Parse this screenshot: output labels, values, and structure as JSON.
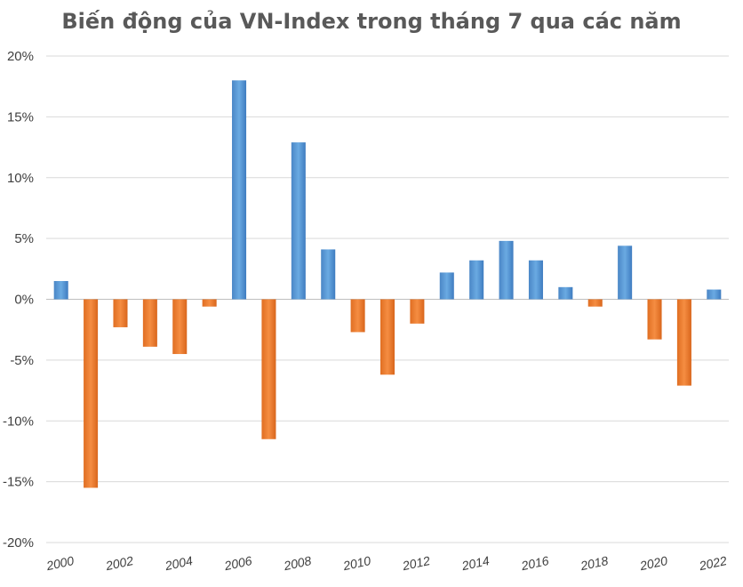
{
  "chart_data": {
    "type": "bar",
    "title": "Biến động của VN-Index trong tháng 7 qua các năm",
    "xlabel": "",
    "ylabel": "",
    "ylim": [
      -20,
      20
    ],
    "yticks": [
      "20%",
      "15%",
      "10%",
      "5%",
      "0%",
      "-5%",
      "-10%",
      "-15%",
      "-20%"
    ],
    "ytick_values": [
      20,
      15,
      10,
      5,
      0,
      -5,
      -10,
      -15,
      -20
    ],
    "xtick_labels": [
      "2000",
      "2002",
      "2004",
      "2006",
      "2008",
      "2010",
      "2012",
      "2014",
      "2016",
      "2018",
      "2020",
      "2022"
    ],
    "categories": [
      "2000",
      "2001",
      "2002",
      "2003",
      "2004",
      "2005",
      "2006",
      "2007",
      "2008",
      "2009",
      "2010",
      "2011",
      "2012",
      "2013",
      "2014",
      "2015",
      "2016",
      "2017",
      "2018",
      "2019",
      "2020",
      "2021",
      "2022"
    ],
    "values": [
      1.5,
      -15.5,
      -2.3,
      -3.9,
      -4.5,
      -0.6,
      18.0,
      -11.5,
      12.9,
      4.1,
      -2.7,
      -6.2,
      -2.0,
      2.2,
      3.2,
      4.8,
      3.2,
      1.0,
      -0.6,
      4.4,
      -3.3,
      -7.1,
      0.8
    ],
    "grid": true,
    "legend": "none",
    "colors": {
      "positive": "#5b9bd5",
      "negative": "#ed7d31"
    }
  }
}
